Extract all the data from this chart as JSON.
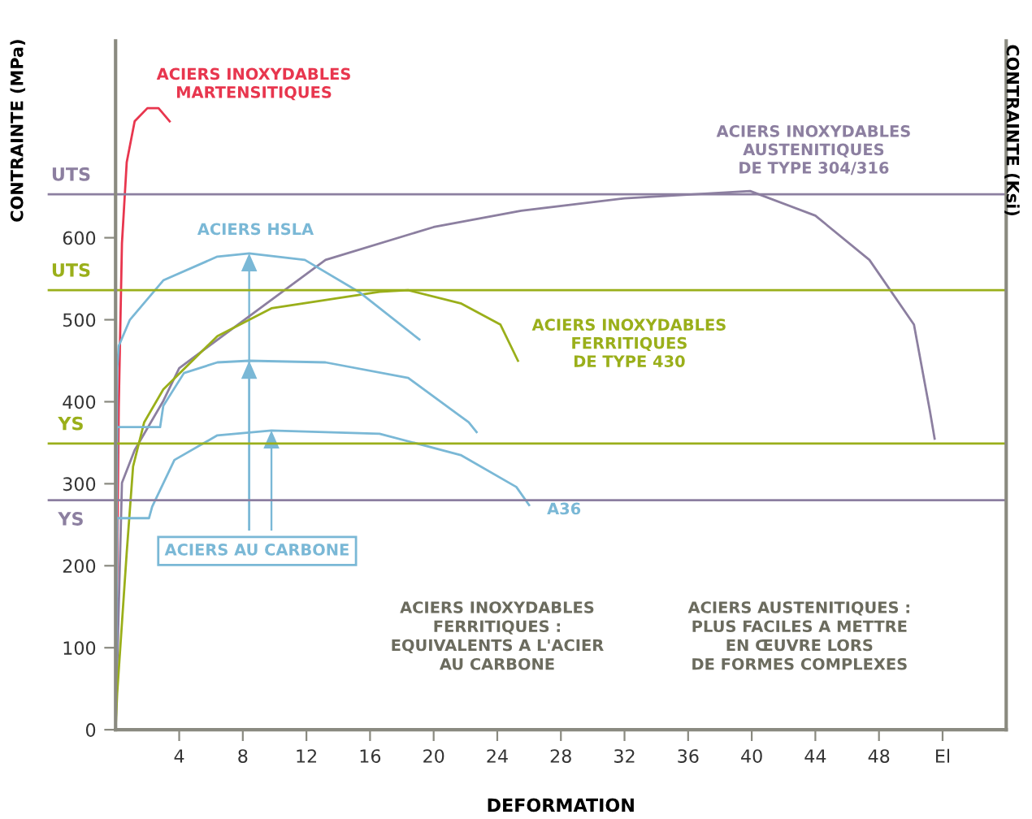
{
  "chart_data": {
    "type": "line",
    "xlabel": "DEFORMATION",
    "ylabel": "CONTRAINTE (MPa)",
    "y2label": "CONTRAINTE (Ksi)",
    "xlim": [
      0,
      56
    ],
    "ylim": [
      0,
      840
    ],
    "xticks": [
      4,
      8,
      12,
      16,
      20,
      24,
      28,
      32,
      36,
      40,
      44,
      48,
      {
        "value": 52,
        "label": "El"
      }
    ],
    "yticks": [
      0,
      100,
      200,
      300,
      400,
      500,
      600
    ],
    "grid": false,
    "marker": "none",
    "line_style": "solid",
    "series": [
      {
        "name": "ACIERS INOXYDABLES\nMARTENSITIQUES",
        "color": "#e8364e",
        "x": [
          0,
          0.1,
          0.2,
          0.4,
          0.7,
          1.2,
          2,
          2.7,
          3.4
        ],
        "values": [
          0,
          196,
          395,
          593,
          692,
          742,
          758,
          758,
          742
        ]
      },
      {
        "name": "ACIERS INOXYDABLES\nAUSTENITIQUES\nDE TYPE 304/316",
        "color": "#8c7fa0",
        "x": [
          0,
          0.2,
          0.4,
          1.2,
          3,
          4,
          8.1,
          13.2,
          20,
          25.5,
          32,
          39.9,
          44,
          47.4,
          50.2,
          51.2,
          51.5
        ],
        "values": [
          0,
          150,
          301,
          341,
          401,
          441,
          500,
          573,
          613,
          633,
          648,
          657,
          627,
          573,
          494,
          389,
          355
        ]
      },
      {
        "name": "ACIERS INOXYDABLES\nFERRITIQUES\nDE TYPE 430",
        "color": "#9aaf1a",
        "x": [
          0,
          0.1,
          0.7,
          1.1,
          1.8,
          3,
          6.4,
          9.8,
          16.6,
          18.4,
          21.7,
          24.2,
          25.3
        ],
        "values": [
          0,
          44,
          216,
          321,
          375,
          415,
          480,
          514,
          534,
          536,
          520,
          494,
          450
        ]
      },
      {
        "name": "ACIERS HSLA",
        "color": "#7ab8d6",
        "x": [
          0,
          0.1,
          0.2,
          0.9,
          3,
          6.4,
          8.4,
          11.9,
          15.3,
          19.1
        ],
        "values": [
          0,
          440,
          468,
          500,
          548,
          577,
          581,
          573,
          534,
          476
        ]
      },
      {
        "color": "#7ab8d6",
        "x": [
          0,
          0.1,
          2.8,
          3,
          4.3,
          6.4,
          8.4,
          13.2,
          18.4,
          22.2,
          22.7
        ],
        "values": [
          0,
          369,
          369,
          395,
          435,
          448,
          450,
          448,
          429,
          375,
          363
        ]
      },
      {
        "name": "A36",
        "color": "#7ab8d6",
        "x": [
          0,
          0.1,
          2.1,
          2.3,
          3.7,
          6.4,
          9.8,
          16.6,
          21.7,
          25.2,
          26
        ],
        "values": [
          0,
          258,
          258,
          272,
          329,
          359,
          365,
          361,
          335,
          296,
          274
        ]
      }
    ],
    "ref_lines": [
      {
        "axis": "y",
        "value": 653,
        "label": "UTS",
        "color": "#8c7fa0"
      },
      {
        "axis": "y",
        "value": 536,
        "label": "UTS",
        "color": "#9aaf1a"
      },
      {
        "axis": "y",
        "value": 349,
        "label": "YS",
        "color": "#9aaf1a"
      },
      {
        "axis": "y",
        "value": 280,
        "label": "YS",
        "color": "#8c7fa0"
      }
    ],
    "annotations": [
      "ACIERS AU CARBONE",
      "ACIERS INOXYDABLES\nFERRITIQUES :\nEQUIVALENTS A L'ACIER\nAU CARBONE",
      "ACIERS AUSTENITIQUES :\nPLUS FACILES A METTRE\nEN ŒUVRE LORS\nDE FORMES COMPLEXES"
    ]
  }
}
